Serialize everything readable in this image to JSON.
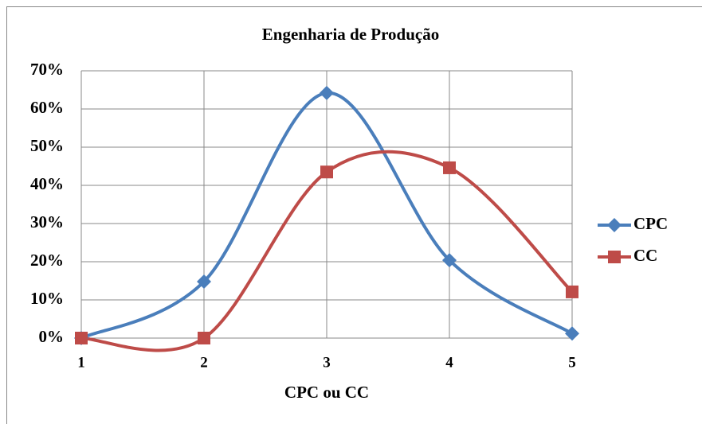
{
  "chart_data": {
    "type": "line",
    "title": "Engenharia de Produção",
    "x_label": "CPC ou CC",
    "x": [
      1,
      2,
      3,
      4,
      5
    ],
    "xlim": [
      1,
      5
    ],
    "xticks": [
      1,
      2,
      3,
      4,
      5
    ],
    "series": [
      {
        "name": "CPC",
        "color": "#4a7ebb",
        "marker": "diamond",
        "values": [
          0,
          14.8,
          64.2,
          20.4,
          1.2
        ]
      },
      {
        "name": "CC",
        "color": "#be4b48",
        "marker": "square",
        "values": [
          0,
          0,
          43.5,
          44.6,
          12.1
        ]
      }
    ],
    "ylim": [
      0,
      70
    ],
    "yticks": [
      {
        "value": 0,
        "label": "0%"
      },
      {
        "value": 10,
        "label": "10%"
      },
      {
        "value": 20,
        "label": "20%"
      },
      {
        "value": 30,
        "label": "30%"
      },
      {
        "value": 40,
        "label": "40%"
      },
      {
        "value": 50,
        "label": "50%"
      },
      {
        "value": 60,
        "label": "60%"
      },
      {
        "value": 70,
        "label": "70%"
      }
    ],
    "grid": true,
    "smooth": true,
    "legend": "right"
  }
}
